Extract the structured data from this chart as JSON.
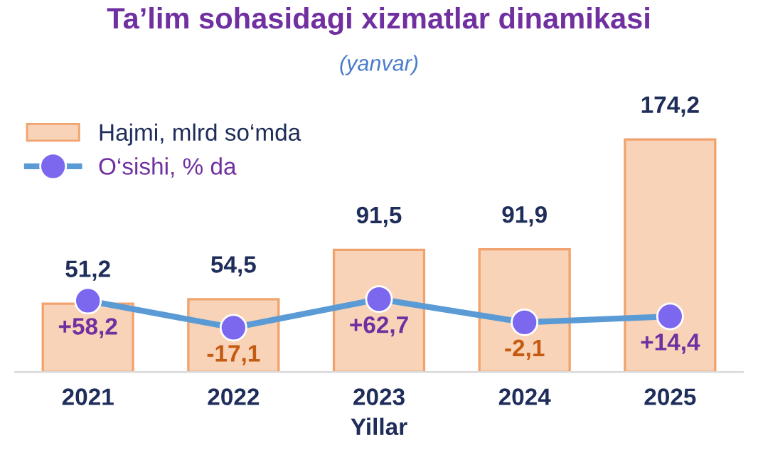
{
  "chart_data": {
    "type": "bar",
    "title": "Ta’lim sohasidagi xizmatlar dinamikasi",
    "subtitle": "(yanvar)",
    "xlabel": "Yillar",
    "categories": [
      "2021",
      "2022",
      "2023",
      "2024",
      "2025"
    ],
    "series": [
      {
        "name": "Hajmi, mlrd so‘mda",
        "color": "#f9d3b8",
        "values": [
          51.2,
          54.5,
          91.5,
          91.9,
          174.2
        ],
        "value_labels": [
          "51,2",
          "54,5",
          "91,5",
          "91,9",
          "174,2"
        ]
      },
      {
        "name": "O‘sishi, % da",
        "type": "line",
        "axis": "y2",
        "color": "#5b9bd5",
        "values": [
          58.2,
          -17.1,
          62.7,
          -2.1,
          14.4
        ],
        "value_labels": [
          "+58,2",
          "-17,1",
          "+62,7",
          "-2,1",
          "+14,4"
        ]
      }
    ],
    "tick_labels": "x",
    "grid": false,
    "legend": "top left",
    "marker": "circle",
    "line_style": "solid"
  }
}
